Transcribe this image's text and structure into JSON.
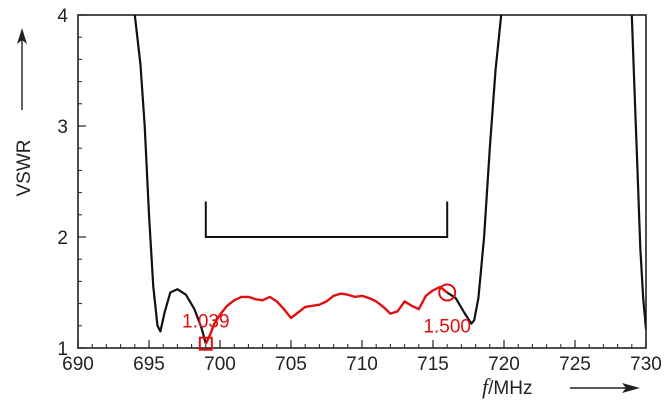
{
  "chart_data": {
    "type": "line",
    "xlabel_italic": "f",
    "xlabel_unit": "/MHz",
    "ylabel": "VSWR",
    "xlim": [
      690,
      730
    ],
    "ylim": [
      1,
      4
    ],
    "x_ticks": [
      "690",
      "695",
      "700",
      "705",
      "710",
      "715",
      "720",
      "725",
      "730"
    ],
    "y_ticks": [
      "1",
      "2",
      "3",
      "4"
    ],
    "grid": false,
    "colors": {
      "black": "#111111",
      "red": "#e01010",
      "axis": "#222222"
    },
    "series": [
      {
        "color": "black",
        "segments": [
          {
            "x": [
              694.0,
              694.4,
              694.7,
              695.0,
              695.3,
              695.6,
              695.8,
              696.1,
              696.5,
              697.0,
              697.6,
              698.2,
              698.7,
              699.0
            ],
            "y": [
              4.0,
              3.55,
              3.0,
              2.2,
              1.55,
              1.2,
              1.15,
              1.32,
              1.5,
              1.53,
              1.48,
              1.35,
              1.18,
              1.04
            ]
          },
          {
            "x": [
              716.0,
              716.6,
              717.2,
              717.7,
              717.9,
              718.2,
              718.6,
              719.0,
              719.4,
              719.8
            ],
            "y": [
              1.5,
              1.45,
              1.32,
              1.22,
              1.25,
              1.45,
              2.0,
              2.8,
              3.5,
              4.0
            ]
          },
          {
            "x": [
              729.0,
              729.2,
              729.4,
              729.6,
              729.8,
              730.0
            ],
            "y": [
              4.0,
              3.3,
              2.6,
              1.9,
              1.45,
              1.17
            ]
          }
        ]
      },
      {
        "color": "red",
        "x": [
          699.0,
          699.3,
          699.6,
          700.0,
          700.5,
          701.0,
          701.5,
          702.0,
          702.5,
          703.0,
          703.5,
          704.0,
          704.5,
          705.0,
          705.5,
          706.0,
          706.5,
          707.0,
          707.5,
          708.0,
          708.5,
          709.0,
          709.5,
          710.0,
          710.5,
          711.0,
          711.5,
          712.0,
          712.5,
          713.0,
          713.5,
          714.0,
          714.5,
          715.0,
          715.5,
          716.0
        ],
        "y": [
          1.039,
          1.12,
          1.22,
          1.3,
          1.38,
          1.43,
          1.46,
          1.46,
          1.44,
          1.43,
          1.46,
          1.42,
          1.35,
          1.27,
          1.32,
          1.37,
          1.38,
          1.39,
          1.42,
          1.47,
          1.49,
          1.48,
          1.46,
          1.47,
          1.45,
          1.42,
          1.37,
          1.31,
          1.33,
          1.42,
          1.38,
          1.35,
          1.47,
          1.52,
          1.55,
          1.5
        ]
      }
    ],
    "band_bracket": {
      "x_start": 699,
      "x_end": 716,
      "y_top": 2.32,
      "y_bottom": 2.0
    },
    "annotations": [
      {
        "text": "1.039",
        "x": 699,
        "y": 1.039,
        "marker": "square"
      },
      {
        "text": "1.500",
        "x": 716,
        "y": 1.5,
        "marker": "circle"
      }
    ]
  }
}
